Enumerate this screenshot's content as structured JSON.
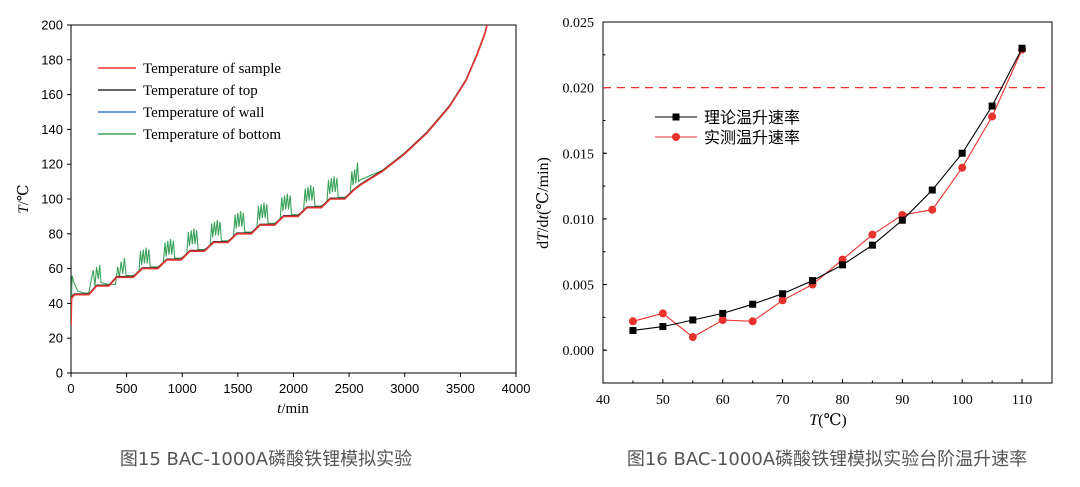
{
  "chart_data": [
    {
      "type": "line",
      "caption": "图15 BAC-1000A磷酸铁锂模拟实验",
      "xlabel_var": "t",
      "xlabel_unit": "/min",
      "ylabel_var": "T",
      "ylabel_unit": "/℃",
      "xlim": [
        0,
        4000
      ],
      "ylim": [
        0,
        200
      ],
      "xticks": [
        0,
        500,
        1000,
        1500,
        2000,
        2500,
        3000,
        3500,
        4000
      ],
      "yticks": [
        0,
        20,
        40,
        60,
        80,
        100,
        120,
        140,
        160,
        180,
        200
      ],
      "legend_position": "top-left",
      "series": [
        {
          "name": "Temperature of sample",
          "color": "#e8322e",
          "x": [
            0,
            5,
            30,
            160,
            230,
            340,
            410,
            560,
            640,
            780,
            860,
            990,
            1070,
            1200,
            1280,
            1410,
            1490,
            1620,
            1700,
            1830,
            1910,
            2040,
            2120,
            2250,
            2330,
            2460,
            2540,
            2600,
            2800,
            3000,
            3200,
            3400,
            3550,
            3650,
            3720,
            3760,
            3790
          ],
          "y": [
            27,
            43,
            45,
            45,
            50,
            50,
            55,
            55,
            60,
            60,
            65,
            65,
            70,
            70,
            75,
            75,
            80,
            80,
            85,
            85,
            90,
            90,
            95,
            95,
            100,
            100,
            105,
            108,
            116,
            126,
            138,
            153,
            168,
            183,
            195,
            205,
            220
          ]
        },
        {
          "name": "Temperature of top",
          "color": "#333333",
          "x": [
            0,
            5,
            30,
            160,
            230,
            340,
            410,
            560,
            640,
            780,
            860,
            990,
            1070,
            1200,
            1280,
            1410,
            1490,
            1620,
            1700,
            1830,
            1910,
            2040,
            2120,
            2250,
            2330,
            2460,
            2540,
            2600,
            2800,
            3000,
            3200,
            3400,
            3550,
            3650,
            3720,
            3760,
            3790
          ],
          "y": [
            30,
            44,
            45.5,
            45.5,
            50.5,
            50.5,
            55.5,
            55.5,
            60.5,
            60.5,
            65.5,
            65.5,
            70.5,
            70.5,
            75.5,
            75.5,
            80.5,
            80.5,
            85.5,
            85.5,
            90.5,
            90.5,
            95.5,
            95.5,
            100.5,
            100.5,
            105.5,
            108.5,
            116.5,
            126.5,
            138.5,
            153.5,
            168.5,
            183.5,
            195.5,
            205.5,
            220
          ]
        },
        {
          "name": "Temperature of wall",
          "color": "#3b7fd0",
          "x": [
            0,
            5,
            30,
            160,
            230,
            340,
            410,
            560,
            640,
            780,
            860,
            990,
            1070,
            1200,
            1280,
            1410,
            1490,
            1620,
            1700,
            1830,
            1910,
            2040,
            2120,
            2250,
            2330,
            2460,
            2540,
            2600,
            2800,
            3000,
            3200,
            3400,
            3550,
            3650,
            3720,
            3760,
            3790
          ],
          "y": [
            29,
            43.5,
            45.3,
            45.3,
            50.3,
            50.3,
            55.3,
            55.3,
            60.3,
            60.3,
            65.3,
            65.3,
            70.3,
            70.3,
            75.3,
            75.3,
            80.3,
            80.3,
            85.3,
            85.3,
            90.3,
            90.3,
            95.3,
            95.3,
            100.3,
            100.3,
            105.3,
            108.3,
            116.3,
            126.3,
            138.3,
            153.3,
            168.3,
            183.3,
            195.3,
            205.3,
            220
          ]
        },
        {
          "name": "Temperature of bottom",
          "color": "#3aa35a",
          "x": [
            0,
            10,
            25,
            60,
            120,
            160,
            190,
            200,
            215,
            230,
            245,
            258,
            270,
            330,
            400,
            420,
            435,
            450,
            465,
            480,
            495,
            560,
            610,
            625,
            635,
            650,
            660,
            675,
            685,
            700,
            712,
            780,
            830,
            845,
            855,
            870,
            880,
            895,
            905,
            920,
            932,
            990,
            1040,
            1055,
            1065,
            1080,
            1090,
            1105,
            1115,
            1130,
            1142,
            1200,
            1250,
            1265,
            1275,
            1290,
            1300,
            1315,
            1325,
            1340,
            1352,
            1410,
            1460,
            1475,
            1485,
            1500,
            1510,
            1525,
            1535,
            1550,
            1562,
            1620,
            1670,
            1685,
            1695,
            1710,
            1720,
            1735,
            1745,
            1760,
            1772,
            1830,
            1880,
            1895,
            1905,
            1920,
            1930,
            1945,
            1955,
            1970,
            1982,
            2040,
            2090,
            2105,
            2115,
            2130,
            2140,
            2155,
            2165,
            2180,
            2192,
            2250,
            2300,
            2315,
            2325,
            2340,
            2350,
            2365,
            2375,
            2390,
            2402,
            2460,
            2510,
            2525,
            2535,
            2550,
            2560,
            2575,
            2585,
            2600,
            2800,
            3000,
            3200,
            3400,
            3550,
            3650,
            3720,
            3760,
            3790
          ],
          "y": [
            30,
            56,
            52,
            47,
            46,
            46,
            56,
            59,
            50,
            61,
            54,
            62,
            52,
            51,
            51,
            61,
            55,
            64,
            57,
            66,
            56,
            56,
            58,
            70,
            62,
            71,
            63,
            72,
            63,
            71,
            61,
            61,
            63,
            75,
            67,
            76,
            68,
            77,
            68,
            76,
            66,
            66,
            68,
            81,
            73,
            82,
            74,
            83,
            74,
            82,
            71,
            71,
            73,
            86,
            78,
            87,
            79,
            88,
            79,
            87,
            76,
            76,
            78,
            91,
            83,
            92,
            84,
            93,
            84,
            92,
            81,
            81,
            83,
            96,
            88,
            97,
            89,
            98,
            89,
            97,
            86,
            86,
            88,
            101,
            93,
            102,
            94,
            103,
            94,
            102,
            91,
            91,
            93,
            106,
            98,
            107,
            99,
            108,
            99,
            107,
            96,
            96,
            98,
            111,
            103,
            112,
            104,
            113,
            104,
            112,
            101,
            101,
            103,
            116,
            108,
            117,
            109,
            121,
            110,
            111,
            116.5,
            126.5,
            138.5,
            153.5,
            168.5,
            183.5,
            195.5,
            205.5,
            220
          ]
        }
      ]
    },
    {
      "type": "line",
      "caption": "图16 BAC-1000A磷酸铁锂模拟实验台阶温升速率",
      "xlabel_var": "T",
      "xlabel_unit": "(℃)",
      "ylabel_pre": "d",
      "ylabel_var1": "T",
      "ylabel_mid": "/d",
      "ylabel_var2": "t",
      "ylabel_unit": "(℃/min)",
      "xlim": [
        40,
        115
      ],
      "ylim": [
        -0.0025,
        0.025
      ],
      "xticks": [
        40,
        50,
        60,
        70,
        80,
        90,
        100,
        110
      ],
      "yticks": [
        "0.000",
        "0.005",
        "0.010",
        "0.015",
        "0.020",
        "0.025"
      ],
      "reference_line": {
        "y": 0.02,
        "color": "#e8322e",
        "style": "dashed"
      },
      "legend_position": "center-left",
      "series": [
        {
          "name": "理论温升速率",
          "color": "#000000",
          "marker": "square",
          "x": [
            45,
            50,
            55,
            60,
            65,
            70,
            75,
            80,
            85,
            90,
            95,
            100,
            105,
            110
          ],
          "y": [
            0.0015,
            0.0018,
            0.0023,
            0.0028,
            0.0035,
            0.0043,
            0.0053,
            0.0065,
            0.008,
            0.0099,
            0.0122,
            0.015,
            0.0186,
            0.023
          ]
        },
        {
          "name": "实测温升速率",
          "color": "#e8322e",
          "marker": "circle",
          "x": [
            45,
            50,
            55,
            60,
            65,
            70,
            75,
            80,
            85,
            90,
            95,
            100,
            105,
            110
          ],
          "y": [
            0.0022,
            0.0028,
            0.001,
            0.0023,
            0.0022,
            0.0038,
            0.005,
            0.0069,
            0.0088,
            0.0103,
            0.0107,
            0.0139,
            0.0178,
            0.0229
          ]
        }
      ]
    }
  ]
}
